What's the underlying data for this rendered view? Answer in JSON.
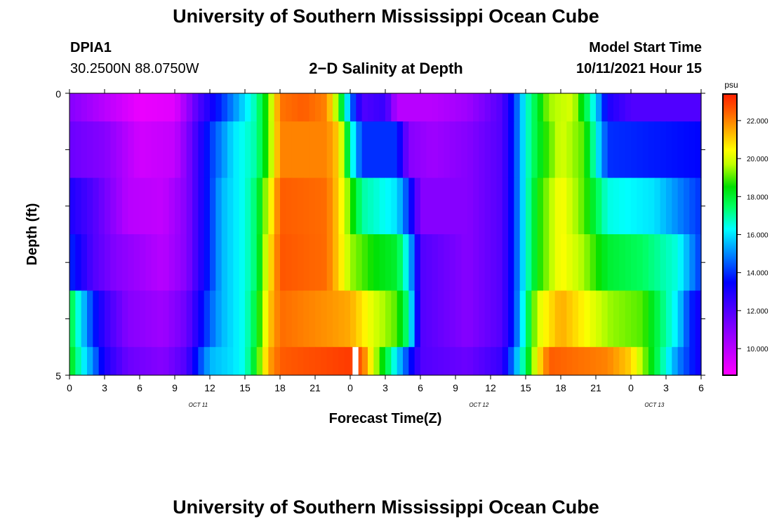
{
  "page": {
    "title_top": "University of Southern Mississippi Ocean Cube",
    "title_bottom": "University of Southern Mississippi Ocean Cube",
    "station_id": "DPIA1",
    "station_coords": "30.2500N  88.0750W",
    "model_label": "Model Start Time",
    "model_time": "10/11/2021 Hour 15"
  },
  "chart_data": {
    "type": "heatmap",
    "title": "2−D Salinity at Depth",
    "xlabel": "Forecast Time(Z)",
    "ylabel": "Depth (ft)",
    "ylim": [
      0,
      5
    ],
    "y_tick_labels": [
      "0",
      "5"
    ],
    "x_tick_labels": [
      "0",
      "3",
      "6",
      "9",
      "12",
      "15",
      "18",
      "21",
      "0",
      "3",
      "6",
      "9",
      "12",
      "15",
      "18",
      "21",
      "0",
      "3",
      "6"
    ],
    "x_date_labels": [
      {
        "label": "OCT  11",
        "hour_index": 11
      },
      {
        "label": "OCT  12",
        "hour_index": 35
      },
      {
        "label": "OCT  13",
        "hour_index": 50
      }
    ],
    "hours_span": 54,
    "depth_layers_ft": [
      [
        0,
        0.5
      ],
      [
        0.5,
        1.5
      ],
      [
        1.5,
        2.5
      ],
      [
        2.5,
        3.5
      ],
      [
        3.5,
        4.5
      ],
      [
        4.5,
        5
      ]
    ],
    "colorbar": {
      "unit": "psu",
      "min": 8.6,
      "max": 23.4,
      "tick_labels": [
        "10.000",
        "12.000",
        "14.000",
        "16.000",
        "18.000",
        "20.000",
        "22.000"
      ],
      "tick_values": [
        10,
        12,
        14,
        16,
        18,
        20,
        22
      ]
    },
    "missing_value_note": "white gap near hour 24-25 at bottom layer",
    "salinity_psu_keypoints": [
      [
        [
          0,
          11
        ],
        [
          3,
          10
        ],
        [
          6,
          9
        ],
        [
          9,
          9.2
        ],
        [
          10,
          10.5
        ],
        [
          11,
          12
        ],
        [
          12,
          13
        ],
        [
          13,
          14
        ],
        [
          14,
          15
        ],
        [
          15,
          16
        ],
        [
          16,
          17
        ],
        [
          17,
          19
        ],
        [
          18,
          22.2
        ],
        [
          20,
          22.5
        ],
        [
          22,
          22
        ],
        [
          23,
          19
        ],
        [
          24,
          15
        ],
        [
          25,
          12
        ],
        [
          27,
          12.5
        ],
        [
          28,
          10
        ],
        [
          31,
          10
        ],
        [
          34,
          10.5
        ],
        [
          37,
          12
        ],
        [
          38,
          14
        ],
        [
          39,
          16.5
        ],
        [
          40,
          18
        ],
        [
          41,
          19.5
        ],
        [
          43,
          20
        ],
        [
          44,
          18
        ],
        [
          45,
          16
        ],
        [
          46,
          13
        ],
        [
          48,
          12
        ],
        [
          54,
          12
        ]
      ],
      [
        [
          0,
          11.5
        ],
        [
          3,
          11
        ],
        [
          6,
          9.5
        ],
        [
          9,
          9.8
        ],
        [
          10,
          11
        ],
        [
          11,
          12.5
        ],
        [
          12,
          14
        ],
        [
          13,
          15
        ],
        [
          14,
          16
        ],
        [
          15,
          16.5
        ],
        [
          16,
          17
        ],
        [
          17,
          19
        ],
        [
          18,
          22
        ],
        [
          22,
          22
        ],
        [
          23,
          21
        ],
        [
          24,
          17
        ],
        [
          25,
          14
        ],
        [
          28,
          14
        ],
        [
          29,
          11
        ],
        [
          31,
          10.5
        ],
        [
          34,
          11
        ],
        [
          37,
          12
        ],
        [
          38,
          14
        ],
        [
          39,
          16.5
        ],
        [
          40,
          18
        ],
        [
          42,
          20
        ],
        [
          44,
          19
        ],
        [
          46,
          14
        ],
        [
          54,
          13.5
        ]
      ],
      [
        [
          0,
          13
        ],
        [
          2,
          12
        ],
        [
          5,
          10
        ],
        [
          8,
          9.8
        ],
        [
          10,
          11
        ],
        [
          11,
          12.5
        ],
        [
          12,
          14
        ],
        [
          13,
          15.5
        ],
        [
          14,
          16
        ],
        [
          15,
          16.5
        ],
        [
          16,
          17.5
        ],
        [
          17,
          20
        ],
        [
          18,
          22.5
        ],
        [
          22,
          22.3
        ],
        [
          23,
          21
        ],
        [
          24,
          19
        ],
        [
          25,
          17
        ],
        [
          28,
          16
        ],
        [
          29,
          14
        ],
        [
          30,
          11
        ],
        [
          34,
          11
        ],
        [
          37,
          12
        ],
        [
          38,
          14
        ],
        [
          39,
          16.5
        ],
        [
          40,
          18.5
        ],
        [
          42,
          20.5
        ],
        [
          44,
          19
        ],
        [
          46,
          16.5
        ],
        [
          50,
          16
        ],
        [
          52,
          15
        ],
        [
          54,
          14
        ]
      ],
      [
        [
          0,
          14
        ],
        [
          2,
          12
        ],
        [
          4,
          11
        ],
        [
          8,
          10
        ],
        [
          10,
          11
        ],
        [
          11,
          12.5
        ],
        [
          12,
          14
        ],
        [
          13,
          15.5
        ],
        [
          14,
          16
        ],
        [
          15,
          16.5
        ],
        [
          16,
          17.5
        ],
        [
          17,
          20.5
        ],
        [
          18,
          22.6
        ],
        [
          22,
          22.3
        ],
        [
          23,
          21
        ],
        [
          24,
          19.5
        ],
        [
          26,
          18.5
        ],
        [
          28,
          18
        ],
        [
          29,
          16
        ],
        [
          30,
          12
        ],
        [
          34,
          11
        ],
        [
          37,
          12
        ],
        [
          38,
          14
        ],
        [
          39,
          16.5
        ],
        [
          40,
          18.5
        ],
        [
          42,
          20.5
        ],
        [
          44,
          19.5
        ],
        [
          46,
          18
        ],
        [
          49,
          17.5
        ],
        [
          52,
          16.5
        ],
        [
          54,
          14
        ]
      ],
      [
        [
          0,
          18
        ],
        [
          1,
          16
        ],
        [
          2,
          14
        ],
        [
          3,
          12.5
        ],
        [
          5,
          11
        ],
        [
          8,
          10.5
        ],
        [
          10,
          11.5
        ],
        [
          11,
          13
        ],
        [
          12,
          14.5
        ],
        [
          13,
          15.5
        ],
        [
          14,
          16
        ],
        [
          15,
          16.5
        ],
        [
          16,
          18
        ],
        [
          17,
          21
        ],
        [
          18,
          22.3
        ],
        [
          22,
          21.8
        ],
        [
          24,
          21.5
        ],
        [
          26,
          20
        ],
        [
          28,
          19
        ],
        [
          29,
          17
        ],
        [
          30,
          12
        ],
        [
          34,
          11
        ],
        [
          37,
          12
        ],
        [
          38,
          14
        ],
        [
          39,
          17
        ],
        [
          40,
          20
        ],
        [
          42,
          21.5
        ],
        [
          46,
          19.5
        ],
        [
          49,
          19
        ],
        [
          52,
          16
        ],
        [
          53,
          14
        ],
        [
          54,
          13
        ]
      ],
      [
        [
          0,
          18.5
        ],
        [
          1,
          16.5
        ],
        [
          2,
          15
        ],
        [
          3,
          13
        ],
        [
          5,
          11.5
        ],
        [
          8,
          11
        ],
        [
          10,
          12
        ],
        [
          11,
          14
        ],
        [
          12,
          15.5
        ],
        [
          14,
          16
        ],
        [
          15,
          16.5
        ],
        [
          16,
          18.5
        ],
        [
          17,
          21.5
        ],
        [
          18,
          22.5
        ],
        [
          22,
          22.8
        ],
        [
          24,
          23
        ],
        [
          25,
          22.5
        ],
        [
          26,
          20
        ],
        [
          27,
          18
        ],
        [
          28,
          16
        ],
        [
          29,
          14
        ],
        [
          30,
          12
        ],
        [
          34,
          11.5
        ],
        [
          37,
          12.5
        ],
        [
          38,
          15
        ],
        [
          39,
          17.5
        ],
        [
          40,
          20.5
        ],
        [
          41,
          22.5
        ],
        [
          46,
          22
        ],
        [
          48,
          21
        ],
        [
          50,
          18
        ],
        [
          52,
          15
        ],
        [
          54,
          13
        ]
      ]
    ]
  }
}
